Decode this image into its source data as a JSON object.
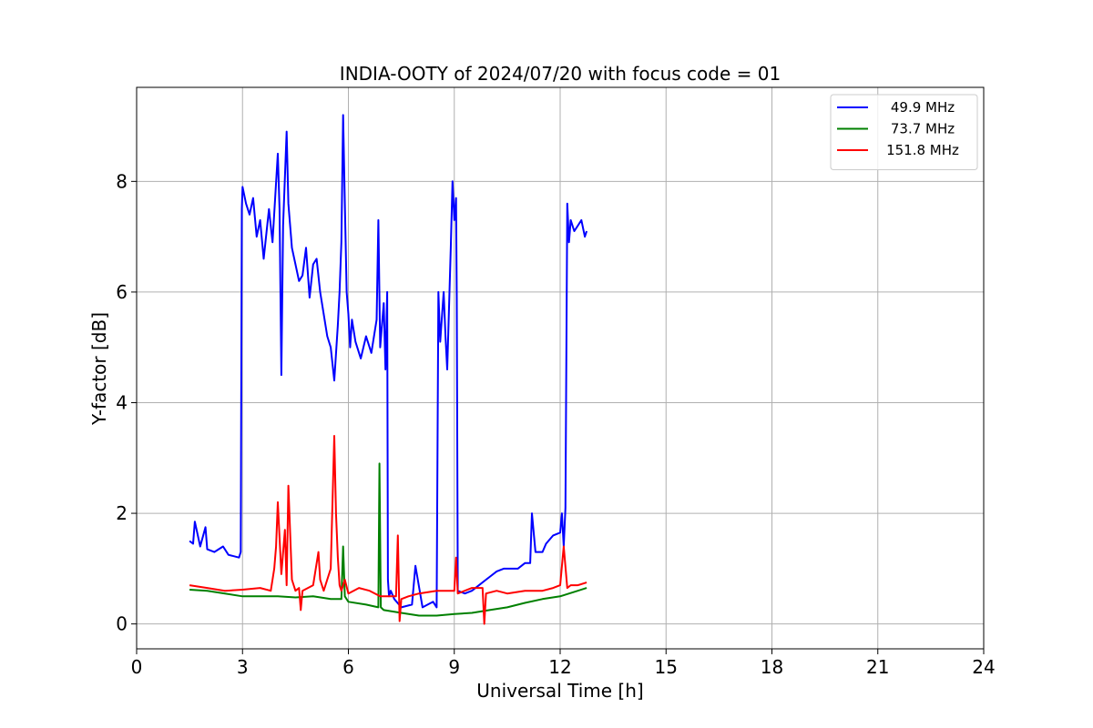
{
  "chart_data": {
    "type": "line",
    "title": "INDIA-OOTY of 2024/07/20 with focus code = 01",
    "xlabel": "Universal Time [h]",
    "ylabel": "Y-factor [dB]",
    "xlim": [
      0,
      24
    ],
    "ylim": [
      -0.45,
      9.7
    ],
    "xticks": [
      0,
      3,
      6,
      9,
      12,
      15,
      18,
      21,
      24
    ],
    "xtick_labels": [
      "0",
      "3",
      "6",
      "9",
      "12",
      "15",
      "18",
      "21",
      "24"
    ],
    "yticks": [
      0,
      2,
      4,
      6,
      8
    ],
    "ytick_labels": [
      "0",
      "2",
      "4",
      "6",
      "8"
    ],
    "grid": true,
    "legend_position": "top-right",
    "series": [
      {
        "name": "49.9 MHz",
        "color": "#0000ff",
        "x": [
          1.5,
          1.6,
          1.65,
          1.8,
          1.95,
          2.0,
          2.2,
          2.45,
          2.6,
          2.9,
          2.95,
          2.98,
          3.0,
          3.1,
          3.2,
          3.3,
          3.4,
          3.5,
          3.6,
          3.75,
          3.85,
          4.0,
          4.05,
          4.1,
          4.15,
          4.25,
          4.3,
          4.4,
          4.5,
          4.6,
          4.7,
          4.8,
          4.9,
          5.0,
          5.1,
          5.2,
          5.3,
          5.4,
          5.5,
          5.6,
          5.7,
          5.75,
          5.8,
          5.85,
          5.9,
          5.95,
          6.0,
          6.05,
          6.1,
          6.2,
          6.35,
          6.5,
          6.65,
          6.8,
          6.85,
          6.9,
          7.0,
          7.05,
          7.1,
          7.12,
          7.15,
          7.2,
          7.3,
          7.5,
          7.8,
          7.9,
          8.1,
          8.4,
          8.5,
          8.55,
          8.6,
          8.7,
          8.75,
          8.8,
          8.9,
          8.95,
          9.0,
          9.05,
          9.07,
          9.1,
          9.3,
          9.5,
          9.7,
          9.9,
          10.0,
          10.2,
          10.4,
          10.6,
          10.8,
          11.0,
          11.15,
          11.2,
          11.3,
          11.5,
          11.6,
          11.8,
          12.0,
          12.05,
          12.1,
          12.15,
          12.2,
          12.25,
          12.3,
          12.4,
          12.5,
          12.6,
          12.7,
          12.75
        ],
        "y": [
          1.5,
          1.45,
          1.85,
          1.4,
          1.75,
          1.35,
          1.3,
          1.4,
          1.25,
          1.2,
          1.3,
          7.5,
          7.9,
          7.6,
          7.4,
          7.7,
          7.0,
          7.3,
          6.6,
          7.5,
          6.9,
          8.5,
          7.5,
          4.5,
          7.2,
          8.9,
          7.6,
          6.8,
          6.5,
          6.2,
          6.3,
          6.8,
          5.9,
          6.5,
          6.6,
          6.0,
          5.6,
          5.2,
          5.0,
          4.4,
          5.4,
          6.0,
          6.9,
          9.2,
          7.6,
          6.0,
          5.6,
          5.0,
          5.5,
          5.1,
          4.8,
          5.2,
          4.9,
          5.5,
          7.3,
          5.0,
          5.8,
          4.6,
          6.0,
          0.8,
          0.5,
          0.6,
          0.45,
          0.3,
          0.35,
          1.05,
          0.3,
          0.4,
          0.3,
          6.0,
          5.1,
          6.0,
          5.2,
          4.6,
          6.8,
          8.0,
          7.3,
          7.7,
          5.9,
          0.6,
          0.55,
          0.6,
          0.7,
          0.8,
          0.85,
          0.95,
          1.0,
          1.0,
          1.0,
          1.1,
          1.1,
          2.0,
          1.3,
          1.3,
          1.45,
          1.6,
          1.65,
          2.0,
          1.4,
          2.1,
          7.6,
          6.9,
          7.3,
          7.1,
          7.2,
          7.3,
          7.0,
          7.1
        ]
      },
      {
        "name": "73.7 MHz",
        "color": "#008000",
        "x": [
          1.5,
          2.0,
          2.5,
          3.0,
          3.5,
          4.0,
          4.5,
          5.0,
          5.5,
          5.8,
          5.85,
          5.9,
          6.0,
          6.5,
          6.85,
          6.88,
          6.92,
          7.0,
          7.5,
          8.0,
          8.5,
          9.0,
          9.5,
          10.0,
          10.5,
          11.0,
          11.5,
          12.0,
          12.5,
          12.75
        ],
        "y": [
          0.62,
          0.6,
          0.55,
          0.5,
          0.5,
          0.5,
          0.48,
          0.5,
          0.45,
          0.45,
          1.4,
          0.5,
          0.4,
          0.35,
          0.3,
          2.9,
          0.3,
          0.25,
          0.2,
          0.15,
          0.15,
          0.18,
          0.2,
          0.25,
          0.3,
          0.38,
          0.45,
          0.5,
          0.6,
          0.65
        ]
      },
      {
        "name": "151.8 MHz",
        "color": "#ff0000",
        "x": [
          1.5,
          2.0,
          2.5,
          3.0,
          3.5,
          3.8,
          3.9,
          3.95,
          4.0,
          4.1,
          4.2,
          4.25,
          4.3,
          4.4,
          4.5,
          4.6,
          4.65,
          4.7,
          5.0,
          5.15,
          5.2,
          5.3,
          5.5,
          5.6,
          5.65,
          5.7,
          5.75,
          5.8,
          5.9,
          6.0,
          6.3,
          6.6,
          6.9,
          7.2,
          7.35,
          7.4,
          7.45,
          7.5,
          7.7,
          8.0,
          8.5,
          9.0,
          9.05,
          9.1,
          9.5,
          9.8,
          9.85,
          9.9,
          10.2,
          10.5,
          11.0,
          11.5,
          11.8,
          12.0,
          12.1,
          12.2,
          12.3,
          12.5,
          12.75
        ],
        "y": [
          0.7,
          0.65,
          0.6,
          0.62,
          0.65,
          0.6,
          1.0,
          1.4,
          2.2,
          0.9,
          1.7,
          0.7,
          2.5,
          0.8,
          0.6,
          0.65,
          0.25,
          0.6,
          0.7,
          1.3,
          0.8,
          0.6,
          1.0,
          3.4,
          2.0,
          1.2,
          0.7,
          0.6,
          0.8,
          0.55,
          0.65,
          0.6,
          0.5,
          0.5,
          0.5,
          1.6,
          0.05,
          0.45,
          0.5,
          0.55,
          0.6,
          0.6,
          1.2,
          0.55,
          0.65,
          0.65,
          0.0,
          0.55,
          0.6,
          0.55,
          0.6,
          0.6,
          0.65,
          0.7,
          1.4,
          0.65,
          0.7,
          0.7,
          0.75
        ]
      }
    ]
  }
}
